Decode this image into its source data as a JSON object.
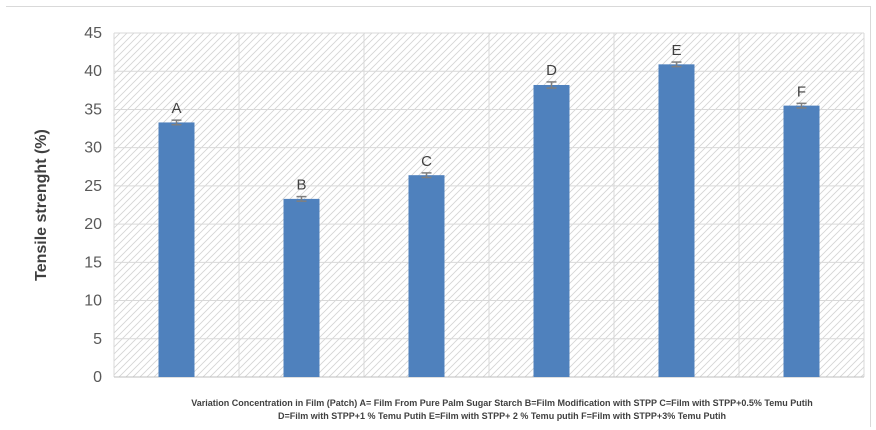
{
  "chart_data": {
    "type": "bar",
    "categories": [
      "A",
      "B",
      "C",
      "D",
      "E",
      "F"
    ],
    "values": [
      33.3,
      23.3,
      26.4,
      38.2,
      40.9,
      35.5
    ],
    "error": [
      0.3,
      0.3,
      0.3,
      0.4,
      0.3,
      0.3
    ],
    "bar_labels": [
      "A",
      "B",
      "C",
      "D",
      "E",
      "F"
    ],
    "ylabel": "Tensile strenght  (%)",
    "xlabel_lines": [
      "Variation  Concentration in Film (Patch)  A= Film From Pure Palm Sugar Starch   B=Film Modification with STPP   C=Film with   STPP+0.5% Temu Putih",
      "D=Film with   STPP+1 % Temu Putih   E=Film with STPP+ 2 % Temu putih   F=Film with  STPP+3%  Temu Putih"
    ],
    "ylim": [
      0,
      45
    ],
    "yticks": [
      0,
      5,
      10,
      15,
      20,
      25,
      30,
      35,
      40,
      45
    ],
    "grid": true,
    "bar_color": "#4f81bd",
    "error_color": "#7f7f7f",
    "background": "hatched"
  }
}
